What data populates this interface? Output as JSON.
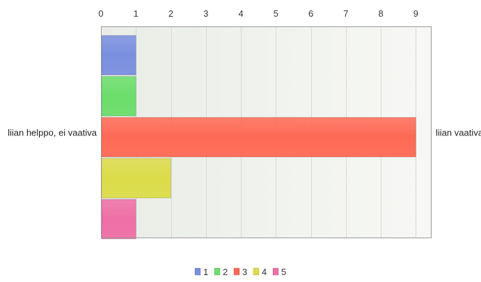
{
  "chart_data": {
    "type": "bar",
    "orientation": "horizontal",
    "left_label": "liian helppo, ei vaativa",
    "right_label": "liian vaativa",
    "x_ticks": [
      0,
      1,
      2,
      3,
      4,
      5,
      6,
      7,
      8,
      9
    ],
    "xlim": [
      0,
      9.45
    ],
    "grid": true,
    "legend_position": "bottom",
    "series": [
      {
        "name": "1",
        "value": 1,
        "color": "#7b8fe0"
      },
      {
        "name": "2",
        "value": 1,
        "color": "#6bde6b"
      },
      {
        "name": "3",
        "value": 9,
        "color": "#ff6a55"
      },
      {
        "name": "4",
        "value": 2,
        "color": "#dcdc4a"
      },
      {
        "name": "5",
        "value": 1,
        "color": "#ee6fa6"
      }
    ]
  }
}
